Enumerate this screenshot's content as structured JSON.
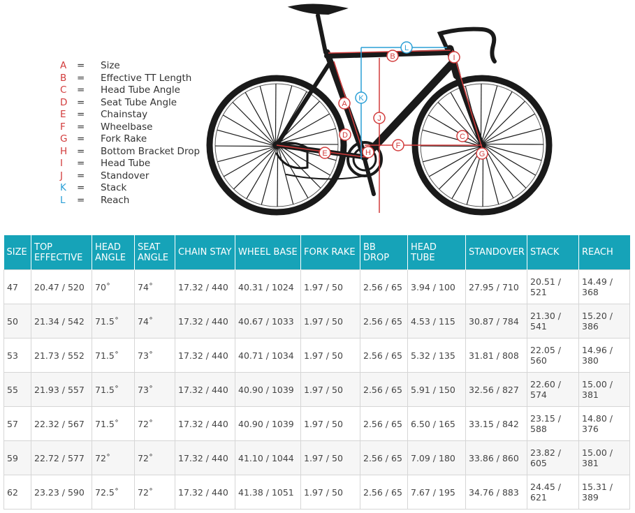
{
  "legend": [
    {
      "letter": "A",
      "eq": "=",
      "text": "Size",
      "color": "#d23b3b"
    },
    {
      "letter": "B",
      "eq": "=",
      "text": "Effective TT Length",
      "color": "#d23b3b"
    },
    {
      "letter": "C",
      "eq": "=",
      "text": "Head Tube Angle",
      "color": "#d23b3b"
    },
    {
      "letter": "D",
      "eq": "=",
      "text": "Seat Tube Angle",
      "color": "#d23b3b"
    },
    {
      "letter": "E",
      "eq": "=",
      "text": "Chainstay",
      "color": "#d23b3b"
    },
    {
      "letter": "F",
      "eq": "=",
      "text": "Wheelbase",
      "color": "#d23b3b"
    },
    {
      "letter": "G",
      "eq": "=",
      "text": "Fork Rake",
      "color": "#d23b3b"
    },
    {
      "letter": "H",
      "eq": "=",
      "text": "Bottom Bracket Drop",
      "color": "#d23b3b"
    },
    {
      "letter": "I",
      "eq": "=",
      "text": "Head Tube",
      "color": "#d23b3b"
    },
    {
      "letter": "J",
      "eq": "=",
      "text": "Standover",
      "color": "#d23b3b"
    },
    {
      "letter": "K",
      "eq": "=",
      "text": "Stack",
      "color": "#2a9fd6"
    },
    {
      "letter": "L",
      "eq": "=",
      "text": "Reach",
      "color": "#2a9fd6"
    }
  ],
  "diagram_labels": {
    "a": "A",
    "b": "B",
    "c": "C",
    "d": "D",
    "e": "E",
    "f": "F",
    "g": "G",
    "h": "H",
    "i": "I",
    "j": "J",
    "k": "K",
    "l": "L"
  },
  "table": {
    "header_color": "#16a3b8",
    "headers": [
      "SIZE",
      "TOP EFFECTIVE",
      "HEAD ANGLE",
      "SEAT ANGLE",
      "CHAIN STAY",
      "WHEEL BASE",
      "FORK RAKE",
      "BB DROP",
      "HEAD TUBE",
      "STANDOVER",
      "STACK",
      "REACH"
    ],
    "rows": [
      [
        "47",
        "20.47 / 520",
        "70˚",
        "74˚",
        "17.32 / 440",
        "40.31 / 1024",
        "1.97 / 50",
        "2.56 / 65",
        "3.94 / 100",
        "27.95 / 710",
        "20.51 / 521",
        "14.49 / 368"
      ],
      [
        "50",
        "21.34 / 542",
        "71.5˚",
        "74˚",
        "17.32 / 440",
        "40.67 / 1033",
        "1.97 / 50",
        "2.56 / 65",
        "4.53 / 115",
        "30.87 / 784",
        "21.30 / 541",
        "15.20 / 386"
      ],
      [
        "53",
        "21.73 / 552",
        "71.5˚",
        "73˚",
        "17.32 / 440",
        "40.71 / 1034",
        "1.97 / 50",
        "2.56 / 65",
        "5.32 / 135",
        "31.81 / 808",
        "22.05 / 560",
        "14.96 / 380"
      ],
      [
        "55",
        "21.93 / 557",
        "71.5˚",
        "73˚",
        "17.32 / 440",
        "40.90 / 1039",
        "1.97 / 50",
        "2.56 / 65",
        "5.91 / 150",
        "32.56 / 827",
        "22.60 / 574",
        "15.00 / 381"
      ],
      [
        "57",
        "22.32 / 567",
        "71.5˚",
        "72˚",
        "17.32 / 440",
        "40.90 / 1039",
        "1.97 / 50",
        "2.56 / 65",
        "6.50 / 165",
        "33.15 / 842",
        "23.15 / 588",
        "14.80 / 376"
      ],
      [
        "59",
        "22.72 / 577",
        "72˚",
        "72˚",
        "17.32 / 440",
        "41.10 / 1044",
        "1.97 / 50",
        "2.56 / 65",
        "7.09 / 180",
        "33.86 / 860",
        "23.82 / 605",
        "15.00 / 381"
      ],
      [
        "62",
        "23.23 / 590",
        "72.5˚",
        "72˚",
        "17.32 / 440",
        "41.38 / 1051",
        "1.97 / 50",
        "2.56 / 65",
        "7.67 / 195",
        "34.76 / 883",
        "24.45 / 621",
        "15.31 / 389"
      ]
    ]
  }
}
